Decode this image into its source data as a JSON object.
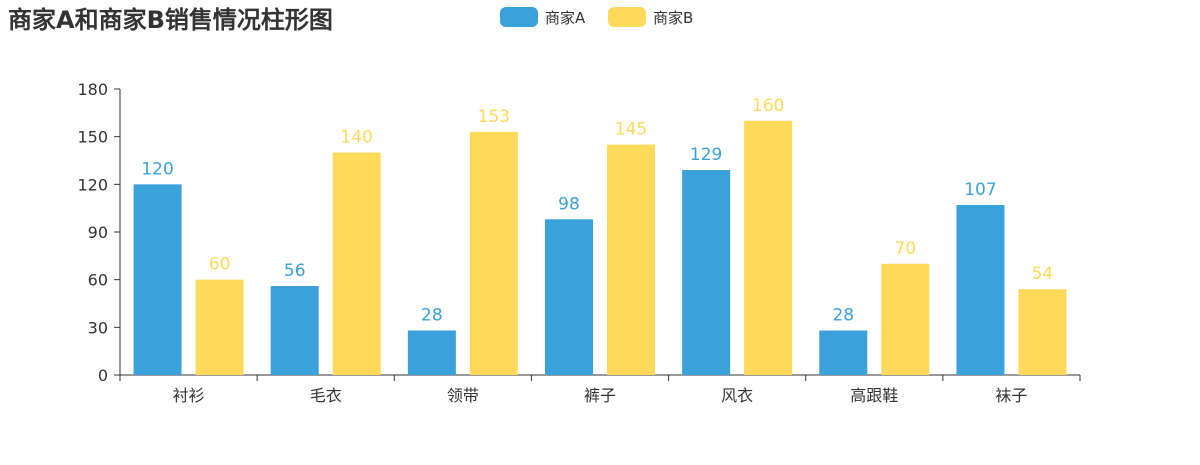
{
  "chart_data": {
    "type": "bar",
    "title": "商家A和商家B销售情况柱形图",
    "categories": [
      "衬衫",
      "毛衣",
      "领带",
      "裤子",
      "风衣",
      "高跟鞋",
      "袜子"
    ],
    "series": [
      {
        "name": "商家A",
        "values": [
          120,
          56,
          28,
          98,
          129,
          28,
          107
        ],
        "color": "#3aa1da"
      },
      {
        "name": "商家B",
        "values": [
          60,
          140,
          153,
          145,
          160,
          70,
          54
        ],
        "color": "#ffd95a"
      }
    ],
    "ylim": [
      0,
      180
    ],
    "yticks": [
      0,
      30,
      60,
      90,
      120,
      150,
      180
    ],
    "xlabel": "",
    "ylabel": "",
    "legend": "top-center",
    "grid": false
  }
}
